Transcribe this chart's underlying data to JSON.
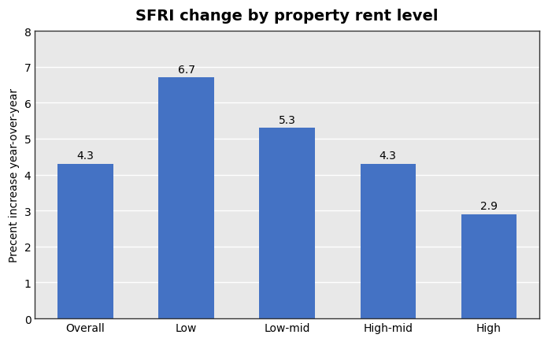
{
  "title": "SFRI change by property rent level",
  "categories": [
    "Overall",
    "Low",
    "Low-mid",
    "High-mid",
    "High"
  ],
  "values": [
    4.3,
    6.7,
    5.3,
    4.3,
    2.9
  ],
  "bar_color": "#4472C4",
  "ylabel": "Precent increase year-over-year",
  "ylim": [
    0,
    8
  ],
  "yticks": [
    0,
    1,
    2,
    3,
    4,
    5,
    6,
    7,
    8
  ],
  "title_fontsize": 14,
  "label_fontsize": 10,
  "tick_fontsize": 10,
  "bar_label_fontsize": 10,
  "outer_bg_color": "#FFFFFF",
  "plot_bg_color": "#E8E8E8",
  "grid_color": "#FFFFFF",
  "spine_color": "#333333",
  "title_fontweight": "bold",
  "bar_width": 0.55
}
